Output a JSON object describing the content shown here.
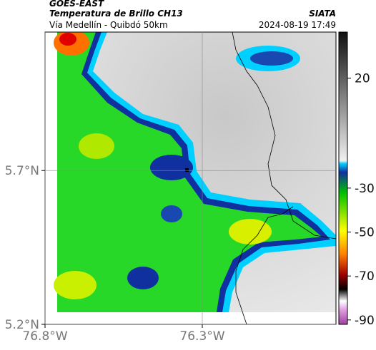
{
  "header": {
    "satellite": "GOES-EAST",
    "title": "Temperatura de Brillo CH13",
    "source": "SIATA",
    "subtitle": "Vía Medellín - Quibdó 50km",
    "datetime": "2024-08-19 17:49"
  },
  "map": {
    "xlim": [
      -76.8,
      -75.875
    ],
    "ylim": [
      5.2,
      6.15
    ],
    "xticks": [
      {
        "value": -76.8,
        "label": "76.8°W"
      },
      {
        "value": -76.3,
        "label": "76.3°W"
      }
    ],
    "yticks": [
      {
        "value": 5.7,
        "label": "5.7°N"
      },
      {
        "value": 5.2,
        "label": "5.2°N"
      }
    ],
    "grid": true
  },
  "colorbar": {
    "range": [
      -92,
      41
    ],
    "ticks": [
      20,
      -30,
      -50,
      -70,
      -90
    ]
  }
}
